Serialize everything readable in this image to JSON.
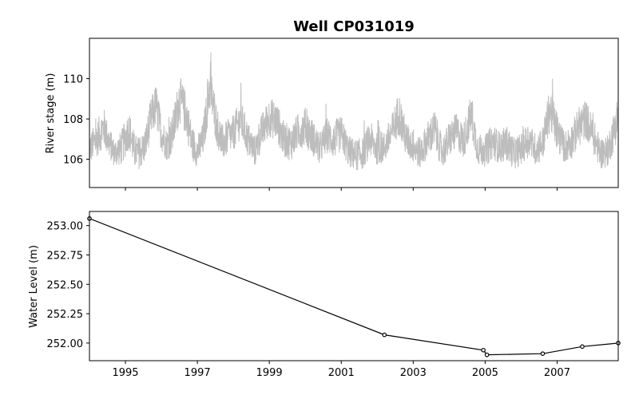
{
  "chart_data": [
    {
      "type": "line",
      "title": "Well CP031019",
      "xlabel": "",
      "ylabel": "River stage (m)",
      "xlim": [
        1994.0,
        2008.7
      ],
      "ylim": [
        104.6,
        112.0
      ],
      "yticks": [
        106,
        108,
        110
      ],
      "xticks": [
        1995,
        1997,
        1999,
        2001,
        2003,
        2005,
        2007
      ],
      "grid": false,
      "series": [
        {
          "color": "#bdbdbd",
          "x": [
            1994.0,
            1994.2,
            1994.4,
            1994.55,
            1994.7,
            1994.9,
            1995.1,
            1995.25,
            1995.4,
            1995.55,
            1995.7,
            1995.85,
            1996.0,
            1996.15,
            1996.3,
            1996.5,
            1996.7,
            1996.85,
            1997.0,
            1997.15,
            1997.35,
            1997.55,
            1997.7,
            1997.85,
            1998.0,
            1998.2,
            1998.4,
            1998.6,
            1998.8,
            1999.0,
            1999.2,
            1999.4,
            1999.6,
            1999.8,
            2000.0,
            2000.2,
            2000.4,
            2000.6,
            2000.8,
            2001.0,
            2001.2,
            2001.4,
            2001.6,
            2001.8,
            2002.0,
            2002.2,
            2002.4,
            2002.6,
            2002.8,
            2003.0,
            2003.2,
            2003.4,
            2003.6,
            2003.8,
            2004.0,
            2004.2,
            2004.4,
            2004.6,
            2004.8,
            2005.0,
            2005.2,
            2005.4,
            2005.6,
            2005.8,
            2006.0,
            2006.2,
            2006.4,
            2006.6,
            2006.8,
            2007.0,
            2007.2,
            2007.4,
            2007.6,
            2007.8,
            2008.0,
            2008.2,
            2008.4,
            2008.6,
            2008.7
          ],
          "mid": [
            106.5,
            107.0,
            107.6,
            106.8,
            106.3,
            106.6,
            107.5,
            106.4,
            106.3,
            106.7,
            108.0,
            108.7,
            107.3,
            106.7,
            107.2,
            109.0,
            108.2,
            106.8,
            106.4,
            106.9,
            109.6,
            107.6,
            106.8,
            107.1,
            107.3,
            108.0,
            107.0,
            106.4,
            107.4,
            108.1,
            107.9,
            107.0,
            106.8,
            107.4,
            107.6,
            107.1,
            106.5,
            107.2,
            106.9,
            107.3,
            106.4,
            106.2,
            106.3,
            107.0,
            106.5,
            106.6,
            107.3,
            108.3,
            107.0,
            106.6,
            106.3,
            107.0,
            107.5,
            106.3,
            107.0,
            107.4,
            106.9,
            108.2,
            106.5,
            106.4,
            106.9,
            106.6,
            106.8,
            106.3,
            106.5,
            107.0,
            106.5,
            106.8,
            108.5,
            107.4,
            106.6,
            106.9,
            107.6,
            108.0,
            107.2,
            106.3,
            106.4,
            107.5,
            108.3
          ],
          "amp": [
            0.8,
            0.9,
            1.0,
            0.8,
            0.7,
            0.9,
            1.0,
            0.9,
            0.8,
            0.9,
            1.0,
            1.1,
            0.9,
            0.8,
            1.0,
            1.2,
            1.1,
            0.9,
            0.8,
            0.9,
            1.2,
            1.0,
            0.9,
            0.9,
            0.9,
            1.0,
            0.9,
            0.8,
            0.9,
            1.0,
            1.0,
            0.9,
            0.9,
            0.9,
            1.0,
            0.9,
            0.8,
            0.9,
            0.9,
            0.9,
            0.8,
            0.8,
            0.8,
            0.9,
            0.8,
            0.8,
            0.9,
            1.1,
            0.9,
            0.8,
            0.8,
            0.9,
            1.0,
            0.8,
            0.9,
            0.9,
            0.9,
            1.0,
            0.8,
            0.8,
            0.9,
            0.8,
            0.9,
            0.8,
            0.8,
            0.9,
            0.8,
            0.9,
            1.1,
            1.0,
            0.8,
            0.9,
            1.0,
            1.0,
            0.9,
            0.8,
            0.8,
            1.0,
            1.1
          ]
        }
      ]
    },
    {
      "type": "line",
      "title": "",
      "xlabel": "",
      "ylabel": "Water Level (m)",
      "xlim": [
        1994.0,
        2008.7
      ],
      "ylim": [
        251.85,
        253.12
      ],
      "yticks": [
        "252.00",
        "252.25",
        "252.50",
        "252.75",
        "253.00"
      ],
      "ytick_values": [
        252.0,
        252.25,
        252.5,
        252.75,
        253.0
      ],
      "xticks": [
        "1995",
        "1997",
        "1999",
        "2001",
        "2003",
        "2005",
        "2007"
      ],
      "xtick_values": [
        1995,
        1997,
        1999,
        2001,
        2003,
        2005,
        2007
      ],
      "grid": false,
      "series": [
        {
          "color": "#000000",
          "marker": "circle",
          "x": [
            1994.0,
            2002.2,
            2004.95,
            2005.05,
            2006.6,
            2007.7,
            2008.7
          ],
          "y": [
            253.06,
            252.07,
            251.94,
            251.9,
            251.91,
            251.97,
            252.0
          ]
        }
      ]
    }
  ]
}
